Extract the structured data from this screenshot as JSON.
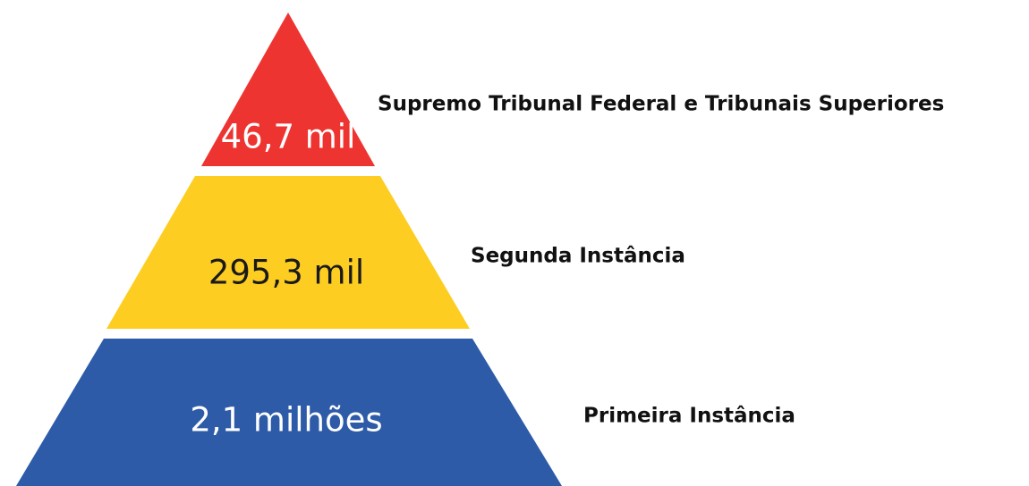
{
  "tiers": [
    {
      "value": "46,7 mil",
      "label": "Supremo Tribunal Federal e Tribunais Superiores"
    },
    {
      "value": "295,3 mil",
      "label": "Segunda Instância"
    },
    {
      "value": "2,1 milhões",
      "label": "Primeira Instância"
    }
  ]
}
